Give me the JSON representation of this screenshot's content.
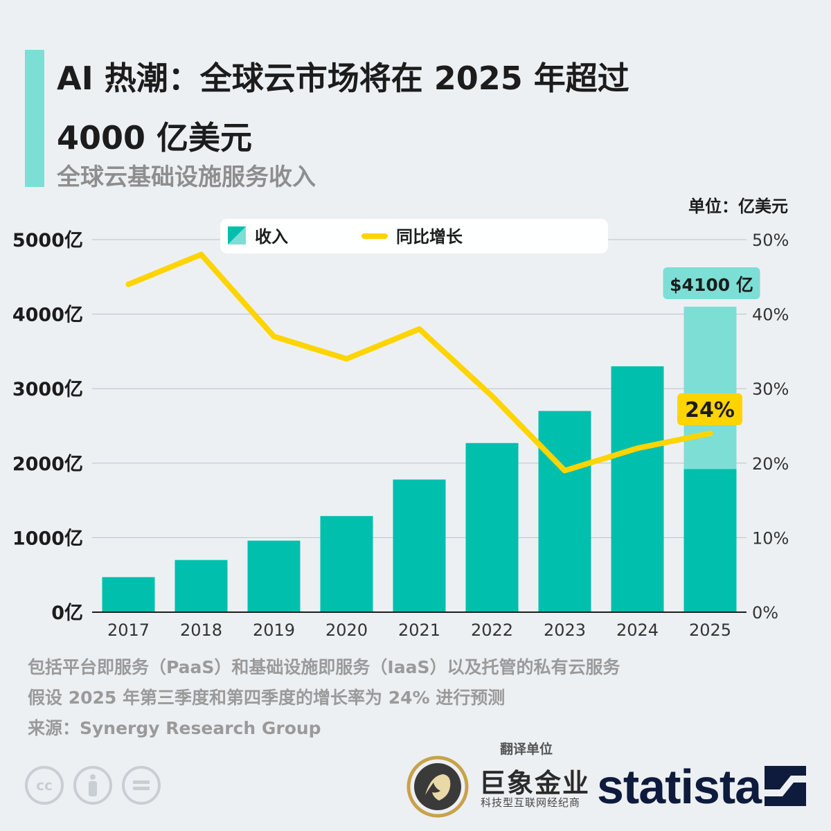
{
  "title_line1": "AI 热潮：全球云市场将在 2025 年超过",
  "title_line2": "4000 亿美元",
  "subtitle": "全球云基础设施服务收入",
  "unit": "单位：亿美元",
  "legend": {
    "revenue": "收入",
    "growth": "同比增长"
  },
  "y_left_ticks": [
    "0亿",
    "1000亿",
    "2000亿",
    "3000亿",
    "4000亿",
    "5000亿"
  ],
  "y_right_ticks": [
    "0%",
    "10%",
    "20%",
    "30%",
    "40%",
    "50%"
  ],
  "callout_value": "$4100 亿",
  "callout_growth": "24%",
  "chart_data": {
    "type": "bar",
    "categories": [
      "2017",
      "2018",
      "2019",
      "2020",
      "2021",
      "2022",
      "2023",
      "2024",
      "2025"
    ],
    "series": [
      {
        "name": "收入",
        "type": "bar",
        "axis": "left",
        "unit": "亿美元",
        "values": [
          470,
          700,
          960,
          1290,
          1780,
          2270,
          2700,
          3300,
          4100
        ],
        "actual_part_2025": 1920,
        "forecast_part_2025": 2180
      },
      {
        "name": "同比增长",
        "type": "line",
        "axis": "right",
        "unit": "%",
        "values": [
          44,
          48,
          37,
          34,
          38,
          29,
          19,
          22,
          24
        ]
      }
    ],
    "ylim_left": [
      0,
      5000
    ],
    "ylim_right": [
      0,
      50
    ],
    "grid": true,
    "legend_position": "top"
  },
  "colors": {
    "bar": "#00bfad",
    "bar_forecast": "#7dded5",
    "line": "#ffd400",
    "title_bar": "#7dded5",
    "background": "#edf0f3"
  },
  "notes": [
    "包括平台即服务（PaaS）和基础设施即服务（IaaS）以及托管的私有云服务",
    "假设 2025 年第三季度和第四季度的增长率为 24% 进行预测",
    "来源：Synergy Research Group"
  ],
  "translator_label": "翻译单位",
  "translator_name": "巨象金业",
  "translator_tagline": "科技型互联网经纪商",
  "brand": "statista"
}
